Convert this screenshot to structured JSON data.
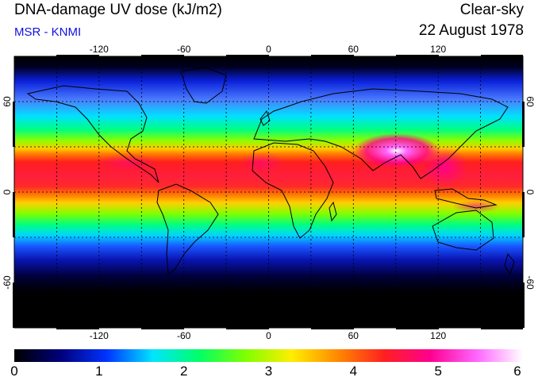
{
  "header": {
    "title": "DNA-damage UV dose (kJ/m2)",
    "subtitle": "MSR - KNMI",
    "sky_condition": "Clear-sky",
    "date": "22 August 1978"
  },
  "axes": {
    "lon_ticks": [
      "-120",
      "-60",
      "0",
      "60",
      "120"
    ],
    "lat_ticks": [
      "60",
      "0",
      "-60"
    ]
  },
  "colorbar": {
    "labels": [
      "0",
      "1",
      "2",
      "3",
      "4",
      "5",
      "6"
    ],
    "stops": [
      "#000000",
      "#00007a",
      "#0033ff",
      "#00e5ff",
      "#00ff66",
      "#7fff00",
      "#ffee00",
      "#ff8800",
      "#ff2020",
      "#ff0090",
      "#ff66ff",
      "#ffffff"
    ]
  }
}
